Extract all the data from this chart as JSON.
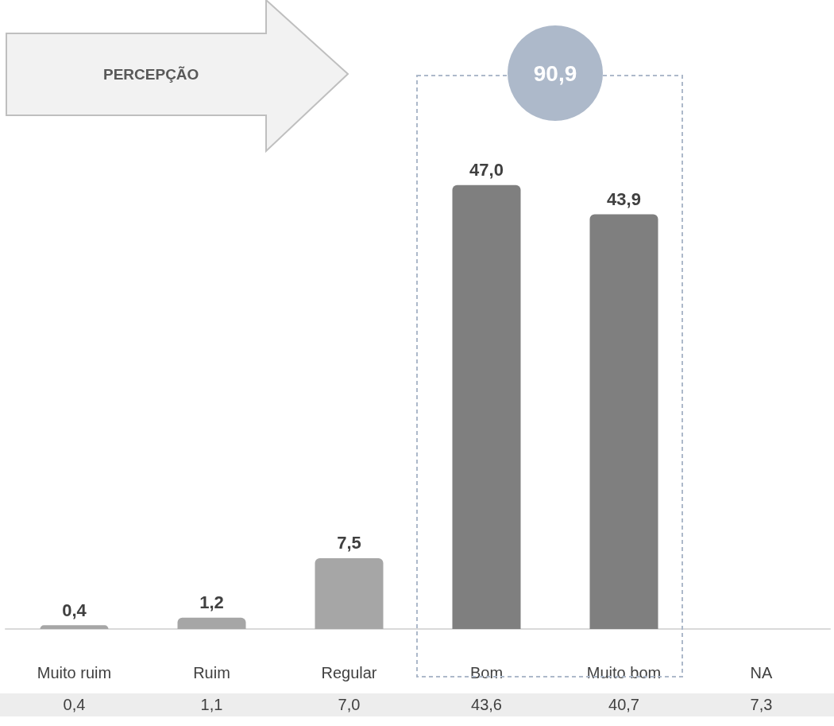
{
  "chart_data": {
    "type": "bar",
    "categories": [
      "Muito ruim",
      "Ruim",
      "Regular",
      "Bom",
      "Muito bom",
      "NA"
    ],
    "values": [
      0.4,
      1.2,
      7.5,
      47.0,
      43.9,
      null
    ],
    "colors": [
      "#a6a6a6",
      "#a6a6a6",
      "#a6a6a6",
      "#7f7f7f",
      "#7f7f7f",
      "#7f7f7f"
    ],
    "value_labels": [
      "0,4",
      "1,2",
      "7,5",
      "47,0",
      "43,9",
      null
    ],
    "annotations": [
      "PERCEPÇÃO",
      "90,9",
      "0,4",
      "1,1",
      "7,0",
      "43,6",
      "40,7",
      "7,3"
    ]
  }
}
